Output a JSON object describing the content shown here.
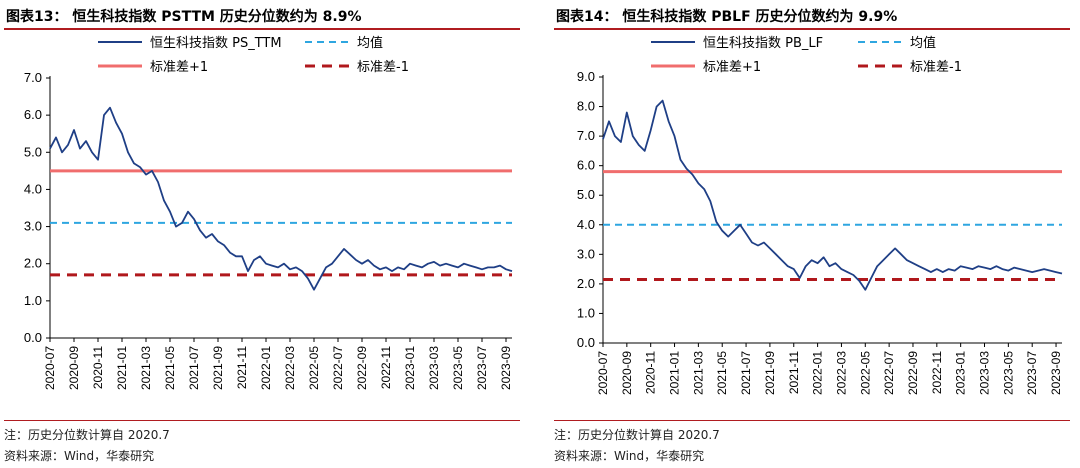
{
  "charts": [
    {
      "title": "图表13：   恒生科技指数 PSTTM 历史分位数约为 8.9%",
      "note": "注：历史分位数计算自 2020.7",
      "source": "资料来源：Wind，华泰研究",
      "colors": {
        "series": "#1f3f86",
        "mean": "#2ea6e0",
        "plus1": "#f06d6d",
        "minus1": "#b0181c"
      },
      "chart_data": {
        "type": "line",
        "ylim": [
          0,
          7
        ],
        "yticks": [
          "0.0",
          "1.0",
          "2.0",
          "3.0",
          "4.0",
          "5.0",
          "6.0",
          "7.0"
        ],
        "yticks_values": [
          0,
          1,
          2,
          3,
          4,
          5,
          6,
          7
        ],
        "x_labels": [
          "2020-07",
          "2020-09",
          "2020-11",
          "2021-01",
          "2021-03",
          "2021-05",
          "2021-07",
          "2021-09",
          "2021-11",
          "2022-01",
          "2022-03",
          "2022-05",
          "2022-07",
          "2022-09",
          "2022-11",
          "2023-01",
          "2023-03",
          "2023-05",
          "2023-07",
          "2023-09"
        ],
        "legend": [
          {
            "label": "恒生科技指数 PS_TTM",
            "style": "series"
          },
          {
            "label": "均值",
            "style": "mean"
          },
          {
            "label": "标准差+1",
            "style": "plus1"
          },
          {
            "label": "标准差-1",
            "style": "minus1"
          }
        ],
        "series": [
          {
            "name": "恒生科技指数 PS_TTM",
            "x": [
              0,
              0.25,
              0.5,
              0.75,
              1,
              1.25,
              1.5,
              1.75,
              2,
              2.25,
              2.5,
              2.75,
              3,
              3.25,
              3.5,
              3.75,
              4,
              4.25,
              4.5,
              4.75,
              5,
              5.25,
              5.5,
              5.75,
              6,
              6.25,
              6.5,
              6.75,
              7,
              7.25,
              7.5,
              7.75,
              8,
              8.25,
              8.5,
              8.75,
              9,
              9.25,
              9.5,
              9.75,
              10,
              10.25,
              10.5,
              10.75,
              11,
              11.25,
              11.5,
              11.75,
              12,
              12.25,
              12.5,
              12.75,
              13,
              13.25,
              13.5,
              13.75,
              14,
              14.25,
              14.5,
              14.75,
              15,
              15.25,
              15.5,
              15.75,
              16,
              16.25,
              16.5,
              16.75,
              17,
              17.25,
              17.5,
              17.75,
              18,
              18.25,
              18.5,
              18.75,
              19,
              19.25
            ],
            "values": [
              5.1,
              5.4,
              5.0,
              5.2,
              5.6,
              5.1,
              5.3,
              5.0,
              4.8,
              6.0,
              6.2,
              5.8,
              5.5,
              5.0,
              4.7,
              4.6,
              4.4,
              4.5,
              4.2,
              3.7,
              3.4,
              3.0,
              3.1,
              3.4,
              3.2,
              2.9,
              2.7,
              2.8,
              2.6,
              2.5,
              2.3,
              2.2,
              2.2,
              1.8,
              2.1,
              2.2,
              2.0,
              1.95,
              1.9,
              2.0,
              1.85,
              1.9,
              1.8,
              1.6,
              1.3,
              1.6,
              1.9,
              2.0,
              2.2,
              2.4,
              2.25,
              2.1,
              2.0,
              2.1,
              1.95,
              1.85,
              1.9,
              1.8,
              1.9,
              1.85,
              2.0,
              1.95,
              1.9,
              2.0,
              2.05,
              1.95,
              2.0,
              1.95,
              1.9,
              2.0,
              1.95,
              1.9,
              1.85,
              1.9,
              1.9,
              1.95,
              1.85,
              1.8
            ]
          }
        ],
        "mean": 3.1,
        "plus1": 4.5,
        "minus1": 1.7
      }
    },
    {
      "title": "图表14：   恒生科技指数 PBLF 历史分位数约为 9.9%",
      "note": "注：历史分位数计算自 2020.7",
      "source": "资料来源：Wind，华泰研究",
      "colors": {
        "series": "#1f3f86",
        "mean": "#2ea6e0",
        "plus1": "#f06d6d",
        "minus1": "#b0181c"
      },
      "chart_data": {
        "type": "line",
        "ylim": [
          0,
          9
        ],
        "yticks": [
          "0.0",
          "1.0",
          "2.0",
          "3.0",
          "4.0",
          "5.0",
          "6.0",
          "7.0",
          "8.0",
          "9.0"
        ],
        "yticks_values": [
          0,
          1,
          2,
          3,
          4,
          5,
          6,
          7,
          8,
          9
        ],
        "x_labels": [
          "2020-07",
          "2020-09",
          "2020-11",
          "2021-01",
          "2021-03",
          "2021-05",
          "2021-07",
          "2021-09",
          "2021-11",
          "2022-01",
          "2022-03",
          "2022-05",
          "2022-07",
          "2022-09",
          "2022-11",
          "2023-01",
          "2023-03",
          "2023-05",
          "2023-07",
          "2023-09"
        ],
        "legend": [
          {
            "label": "恒生科技指数 PB_LF",
            "style": "series"
          },
          {
            "label": "均值",
            "style": "mean"
          },
          {
            "label": "标准差+1",
            "style": "plus1"
          },
          {
            "label": "标准差-1",
            "style": "minus1"
          }
        ],
        "series": [
          {
            "name": "恒生科技指数 PB_LF",
            "x": [
              0,
              0.25,
              0.5,
              0.75,
              1,
              1.25,
              1.5,
              1.75,
              2,
              2.25,
              2.5,
              2.75,
              3,
              3.25,
              3.5,
              3.75,
              4,
              4.25,
              4.5,
              4.75,
              5,
              5.25,
              5.5,
              5.75,
              6,
              6.25,
              6.5,
              6.75,
              7,
              7.25,
              7.5,
              7.75,
              8,
              8.25,
              8.5,
              8.75,
              9,
              9.25,
              9.5,
              9.75,
              10,
              10.25,
              10.5,
              10.75,
              11,
              11.25,
              11.5,
              11.75,
              12,
              12.25,
              12.5,
              12.75,
              13,
              13.25,
              13.5,
              13.75,
              14,
              14.25,
              14.5,
              14.75,
              15,
              15.25,
              15.5,
              15.75,
              16,
              16.25,
              16.5,
              16.75,
              17,
              17.25,
              17.5,
              17.75,
              18,
              18.25,
              18.5,
              18.75,
              19,
              19.25
            ],
            "values": [
              6.9,
              7.5,
              7.0,
              6.8,
              7.8,
              7.0,
              6.7,
              6.5,
              7.2,
              8.0,
              8.2,
              7.5,
              7.0,
              6.2,
              5.9,
              5.7,
              5.4,
              5.2,
              4.8,
              4.1,
              3.8,
              3.6,
              3.8,
              4.0,
              3.7,
              3.4,
              3.3,
              3.4,
              3.2,
              3.0,
              2.8,
              2.6,
              2.5,
              2.2,
              2.6,
              2.8,
              2.7,
              2.9,
              2.6,
              2.7,
              2.5,
              2.4,
              2.3,
              2.1,
              1.8,
              2.2,
              2.6,
              2.8,
              3.0,
              3.2,
              3.0,
              2.8,
              2.7,
              2.6,
              2.5,
              2.4,
              2.5,
              2.4,
              2.5,
              2.45,
              2.6,
              2.55,
              2.5,
              2.6,
              2.55,
              2.5,
              2.6,
              2.5,
              2.45,
              2.55,
              2.5,
              2.45,
              2.4,
              2.45,
              2.5,
              2.45,
              2.4,
              2.35
            ]
          }
        ],
        "mean": 4.0,
        "plus1": 5.8,
        "minus1": 2.15
      }
    }
  ]
}
